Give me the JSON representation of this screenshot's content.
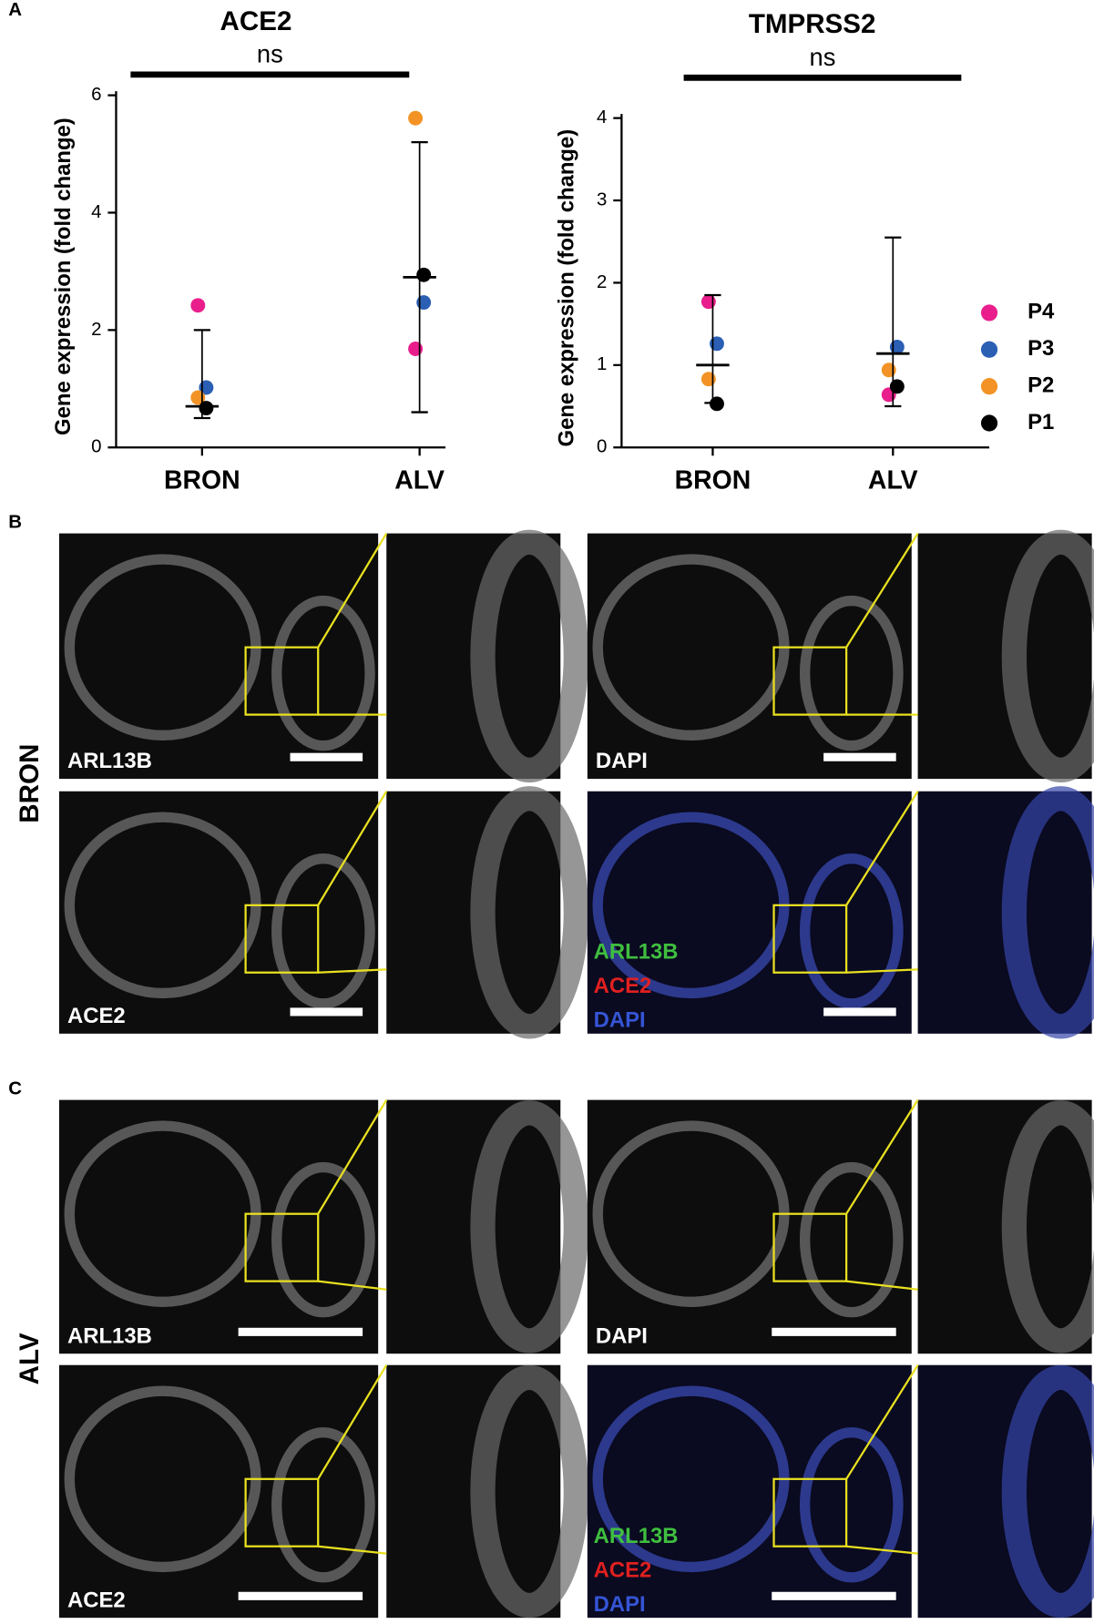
{
  "panel_label": "A",
  "chart_data": [
    {
      "type": "scatter",
      "title": "ACE2",
      "significance": "ns",
      "y_label": "Gene expression (fold change)",
      "categories": [
        "BRON",
        "ALV"
      ],
      "ylim": [
        0,
        6
      ],
      "yticks": [
        0,
        2,
        4,
        6
      ],
      "series": [
        {
          "color": "#e91e8c",
          "values": [
            2.42,
            1.68
          ]
        },
        {
          "color": "#2b5fb4",
          "values": [
            1.02,
            2.47
          ]
        },
        {
          "color": "#f39325",
          "values": [
            0.85,
            5.61
          ]
        },
        {
          "color": "#000000",
          "values": [
            0.67,
            2.94
          ]
        }
      ],
      "mean": [
        0.7,
        2.9
      ],
      "error_bar": [
        [
          0.5,
          2.0
        ],
        [
          0.6,
          5.2
        ]
      ]
    },
    {
      "type": "scatter",
      "title": "TMPRSS2",
      "significance": "ns",
      "y_label": "Gene expression (fold change)",
      "categories": [
        "BRON",
        "ALV"
      ],
      "ylim": [
        0,
        4
      ],
      "yticks": [
        0,
        1,
        2,
        3,
        4
      ],
      "legend": "right",
      "series": [
        {
          "name": "P4",
          "color": "#e91e8c",
          "values": [
            1.77,
            0.64
          ]
        },
        {
          "name": "P3",
          "color": "#2b5fb4",
          "values": [
            1.26,
            1.22
          ]
        },
        {
          "name": "P2",
          "color": "#f39325",
          "values": [
            0.83,
            0.94
          ]
        },
        {
          "name": "P1",
          "color": "#000000",
          "values": [
            0.53,
            0.74
          ]
        }
      ],
      "mean": [
        1.0,
        1.14
      ],
      "error_bar": [
        [
          0.54,
          1.85
        ],
        [
          0.5,
          2.55
        ]
      ]
    }
  ],
  "panels": [
    {
      "label": "B",
      "row_label": "BRON",
      "top_left": "ARL13B",
      "top_right": "DAPI",
      "bottom_left": "ACE2",
      "merge": [
        "ARL13B",
        "ACE2",
        "DAPI"
      ]
    },
    {
      "label": "C",
      "row_label": "ALV",
      "top_left": "ARL13B",
      "top_right": "DAPI",
      "bottom_left": "ACE2",
      "merge": [
        "ARL13B",
        "ACE2",
        "DAPI"
      ]
    }
  ]
}
